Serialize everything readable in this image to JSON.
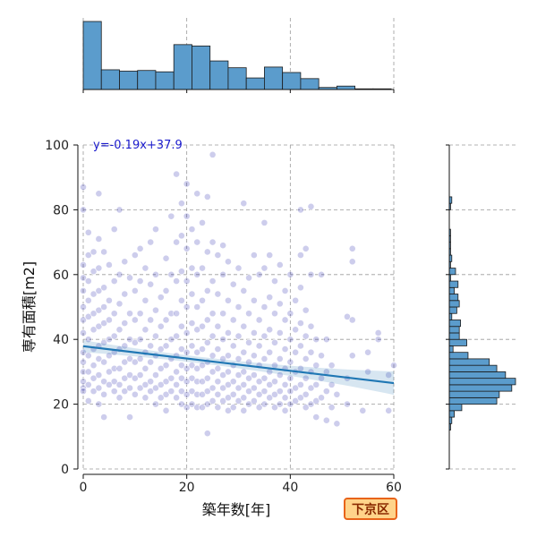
{
  "chart_data": {
    "type": "scatter",
    "xlabel": "築年数[年]",
    "ylabel": "専有面積[m2]",
    "xlim": [
      0,
      60
    ],
    "ylim": [
      0,
      100
    ],
    "xticks": [
      0,
      20,
      40,
      60
    ],
    "yticks": [
      0,
      20,
      40,
      60,
      80,
      100
    ],
    "grid": true,
    "point_color": "#1a1aa8",
    "line_color": "#1f77b4",
    "hist_color": "#5b9ccc",
    "regression": {
      "slope": -0.19,
      "intercept": 37.9,
      "label": "y=-0.19x+37.9"
    },
    "marginal_x_hist": {
      "bin_width": 3.5,
      "bin_start": 0,
      "counts": [
        100,
        29,
        27,
        28,
        26,
        66,
        64,
        42,
        32,
        17,
        33,
        25,
        16,
        3,
        5,
        1,
        1
      ]
    },
    "marginal_y_hist": {
      "bin_edges": [
        12,
        14,
        16,
        18,
        20,
        22,
        24,
        26,
        28,
        30,
        32,
        34,
        36,
        38,
        40,
        42,
        44,
        46,
        48,
        50,
        52,
        54,
        56,
        58,
        60,
        62,
        64,
        66,
        68,
        70,
        72,
        74,
        76,
        78,
        80,
        82,
        84
      ],
      "counts": [
        1,
        2,
        4,
        10,
        38,
        40,
        50,
        53,
        45,
        38,
        32,
        15,
        3,
        14,
        8,
        8,
        9,
        2,
        6,
        8,
        7,
        4,
        7,
        1,
        5,
        1,
        2,
        1,
        1,
        1,
        1,
        0,
        0,
        0,
        1,
        2
      ]
    },
    "points": [
      [
        0,
        87
      ],
      [
        0,
        80
      ],
      [
        0,
        63
      ],
      [
        0,
        59
      ],
      [
        0,
        55
      ],
      [
        0,
        50
      ],
      [
        0,
        46
      ],
      [
        0,
        42
      ],
      [
        0,
        36
      ],
      [
        0,
        33
      ],
      [
        0,
        30
      ],
      [
        0,
        27
      ],
      [
        0,
        25
      ],
      [
        0,
        24
      ],
      [
        1,
        73
      ],
      [
        1,
        66
      ],
      [
        1,
        58
      ],
      [
        1,
        52
      ],
      [
        1,
        47
      ],
      [
        1,
        40
      ],
      [
        1,
        35
      ],
      [
        1,
        30
      ],
      [
        1,
        26
      ],
      [
        1,
        21
      ],
      [
        2,
        67
      ],
      [
        2,
        61
      ],
      [
        2,
        54
      ],
      [
        2,
        48
      ],
      [
        2,
        43
      ],
      [
        2,
        37
      ],
      [
        2,
        32
      ],
      [
        2,
        28
      ],
      [
        2,
        24
      ],
      [
        3,
        85
      ],
      [
        3,
        71
      ],
      [
        3,
        62
      ],
      [
        3,
        55
      ],
      [
        3,
        49
      ],
      [
        3,
        44
      ],
      [
        3,
        38
      ],
      [
        3,
        34
      ],
      [
        3,
        29
      ],
      [
        3,
        25
      ],
      [
        3,
        20
      ],
      [
        4,
        67
      ],
      [
        4,
        56
      ],
      [
        4,
        50
      ],
      [
        4,
        45
      ],
      [
        4,
        39
      ],
      [
        4,
        33
      ],
      [
        4,
        27
      ],
      [
        4,
        23
      ],
      [
        4,
        16
      ],
      [
        5,
        63
      ],
      [
        5,
        52
      ],
      [
        5,
        46
      ],
      [
        5,
        40
      ],
      [
        5,
        35
      ],
      [
        5,
        30
      ],
      [
        5,
        26
      ],
      [
        6,
        74
      ],
      [
        6,
        58
      ],
      [
        6,
        48
      ],
      [
        6,
        41
      ],
      [
        6,
        36
      ],
      [
        6,
        31
      ],
      [
        6,
        27
      ],
      [
        6,
        24
      ],
      [
        7,
        80
      ],
      [
        7,
        60
      ],
      [
        7,
        51
      ],
      [
        7,
        43
      ],
      [
        7,
        37
      ],
      [
        7,
        31
      ],
      [
        7,
        26
      ],
      [
        7,
        22
      ],
      [
        8,
        64
      ],
      [
        8,
        54
      ],
      [
        8,
        45
      ],
      [
        8,
        38
      ],
      [
        8,
        33
      ],
      [
        8,
        28
      ],
      [
        8,
        24
      ],
      [
        9,
        59
      ],
      [
        9,
        48
      ],
      [
        9,
        40
      ],
      [
        9,
        34
      ],
      [
        9,
        29
      ],
      [
        9,
        25
      ],
      [
        9,
        16
      ],
      [
        10,
        66
      ],
      [
        10,
        55
      ],
      [
        10,
        46
      ],
      [
        10,
        39
      ],
      [
        10,
        33
      ],
      [
        10,
        28
      ],
      [
        10,
        23
      ],
      [
        11,
        68
      ],
      [
        11,
        58
      ],
      [
        11,
        48
      ],
      [
        11,
        40
      ],
      [
        11,
        34
      ],
      [
        11,
        29
      ],
      [
        11,
        25
      ],
      [
        12,
        62
      ],
      [
        12,
        52
      ],
      [
        12,
        43
      ],
      [
        12,
        36
      ],
      [
        12,
        31
      ],
      [
        12,
        26
      ],
      [
        12,
        22
      ],
      [
        13,
        70
      ],
      [
        13,
        57
      ],
      [
        13,
        46
      ],
      [
        13,
        38
      ],
      [
        13,
        33
      ],
      [
        13,
        27
      ],
      [
        13,
        24
      ],
      [
        14,
        74
      ],
      [
        14,
        60
      ],
      [
        14,
        49
      ],
      [
        14,
        41
      ],
      [
        14,
        35
      ],
      [
        14,
        29
      ],
      [
        14,
        25
      ],
      [
        14,
        20
      ],
      [
        15,
        53
      ],
      [
        15,
        44
      ],
      [
        15,
        37
      ],
      [
        15,
        31
      ],
      [
        15,
        26
      ],
      [
        15,
        22
      ],
      [
        16,
        65
      ],
      [
        16,
        55
      ],
      [
        16,
        46
      ],
      [
        16,
        38
      ],
      [
        16,
        32
      ],
      [
        16,
        27
      ],
      [
        16,
        23
      ],
      [
        16,
        18
      ],
      [
        17,
        78
      ],
      [
        17,
        60
      ],
      [
        17,
        48
      ],
      [
        17,
        40
      ],
      [
        17,
        34
      ],
      [
        17,
        28
      ],
      [
        17,
        24
      ],
      [
        18,
        91
      ],
      [
        18,
        70
      ],
      [
        18,
        58
      ],
      [
        18,
        48
      ],
      [
        18,
        41
      ],
      [
        18,
        35
      ],
      [
        18,
        30
      ],
      [
        18,
        26
      ],
      [
        18,
        22
      ],
      [
        19,
        82
      ],
      [
        19,
        72
      ],
      [
        19,
        61
      ],
      [
        19,
        52
      ],
      [
        19,
        44
      ],
      [
        19,
        37
      ],
      [
        19,
        32
      ],
      [
        19,
        28
      ],
      [
        19,
        24
      ],
      [
        19,
        20
      ],
      [
        20,
        88
      ],
      [
        20,
        78
      ],
      [
        20,
        68
      ],
      [
        20,
        58
      ],
      [
        20,
        50
      ],
      [
        20,
        42
      ],
      [
        20,
        36
      ],
      [
        20,
        31
      ],
      [
        20,
        27
      ],
      [
        20,
        23
      ],
      [
        20,
        19
      ],
      [
        21,
        74
      ],
      [
        21,
        62
      ],
      [
        21,
        54
      ],
      [
        21,
        45
      ],
      [
        21,
        38
      ],
      [
        21,
        32
      ],
      [
        21,
        28
      ],
      [
        21,
        24
      ],
      [
        21,
        20
      ],
      [
        22,
        85
      ],
      [
        22,
        70
      ],
      [
        22,
        60
      ],
      [
        22,
        50
      ],
      [
        22,
        43
      ],
      [
        22,
        36
      ],
      [
        22,
        31
      ],
      [
        22,
        27
      ],
      [
        22,
        23
      ],
      [
        22,
        19
      ],
      [
        23,
        76
      ],
      [
        23,
        62
      ],
      [
        23,
        52
      ],
      [
        23,
        44
      ],
      [
        23,
        37
      ],
      [
        23,
        32
      ],
      [
        23,
        27
      ],
      [
        23,
        23
      ],
      [
        23,
        19
      ],
      [
        24,
        84
      ],
      [
        24,
        67
      ],
      [
        24,
        55
      ],
      [
        24,
        46
      ],
      [
        24,
        39
      ],
      [
        24,
        33
      ],
      [
        24,
        28
      ],
      [
        24,
        24
      ],
      [
        24,
        20
      ],
      [
        24,
        11
      ],
      [
        25,
        97
      ],
      [
        25,
        70
      ],
      [
        25,
        58
      ],
      [
        25,
        48
      ],
      [
        25,
        41
      ],
      [
        25,
        35
      ],
      [
        25,
        30
      ],
      [
        25,
        25
      ],
      [
        25,
        21
      ],
      [
        26,
        66
      ],
      [
        26,
        54
      ],
      [
        26,
        44
      ],
      [
        26,
        37
      ],
      [
        26,
        31
      ],
      [
        26,
        27
      ],
      [
        26,
        23
      ],
      [
        26,
        19
      ],
      [
        27,
        69
      ],
      [
        27,
        60
      ],
      [
        27,
        48
      ],
      [
        27,
        40
      ],
      [
        27,
        34
      ],
      [
        27,
        29
      ],
      [
        27,
        25
      ],
      [
        27,
        21
      ],
      [
        28,
        64
      ],
      [
        28,
        52
      ],
      [
        28,
        42
      ],
      [
        28,
        35
      ],
      [
        28,
        30
      ],
      [
        28,
        26
      ],
      [
        28,
        22
      ],
      [
        28,
        18
      ],
      [
        29,
        57
      ],
      [
        29,
        46
      ],
      [
        29,
        38
      ],
      [
        29,
        32
      ],
      [
        29,
        27
      ],
      [
        29,
        23
      ],
      [
        29,
        19
      ],
      [
        30,
        62
      ],
      [
        30,
        50
      ],
      [
        30,
        41
      ],
      [
        30,
        34
      ],
      [
        30,
        29
      ],
      [
        30,
        25
      ],
      [
        30,
        21
      ],
      [
        31,
        82
      ],
      [
        31,
        55
      ],
      [
        31,
        44
      ],
      [
        31,
        36
      ],
      [
        31,
        30
      ],
      [
        31,
        26
      ],
      [
        31,
        22
      ],
      [
        31,
        18
      ],
      [
        32,
        59
      ],
      [
        32,
        48
      ],
      [
        32,
        39
      ],
      [
        32,
        33
      ],
      [
        32,
        28
      ],
      [
        32,
        24
      ],
      [
        32,
        20
      ],
      [
        33,
        66
      ],
      [
        33,
        52
      ],
      [
        33,
        42
      ],
      [
        33,
        35
      ],
      [
        33,
        29
      ],
      [
        33,
        25
      ],
      [
        33,
        21
      ],
      [
        34,
        60
      ],
      [
        34,
        46
      ],
      [
        34,
        38
      ],
      [
        34,
        32
      ],
      [
        34,
        27
      ],
      [
        34,
        23
      ],
      [
        34,
        19
      ],
      [
        35,
        76
      ],
      [
        35,
        62
      ],
      [
        35,
        50
      ],
      [
        35,
        41
      ],
      [
        35,
        34
      ],
      [
        35,
        28
      ],
      [
        35,
        24
      ],
      [
        35,
        20
      ],
      [
        36,
        66
      ],
      [
        36,
        53
      ],
      [
        36,
        43
      ],
      [
        36,
        36
      ],
      [
        36,
        30
      ],
      [
        36,
        26
      ],
      [
        36,
        22
      ],
      [
        37,
        58
      ],
      [
        37,
        48
      ],
      [
        37,
        39
      ],
      [
        37,
        32
      ],
      [
        37,
        27
      ],
      [
        37,
        23
      ],
      [
        37,
        19
      ],
      [
        38,
        63
      ],
      [
        38,
        51
      ],
      [
        38,
        42
      ],
      [
        38,
        34
      ],
      [
        38,
        29
      ],
      [
        38,
        24
      ],
      [
        38,
        20
      ],
      [
        39,
        55
      ],
      [
        39,
        46
      ],
      [
        39,
        37
      ],
      [
        39,
        31
      ],
      [
        39,
        26
      ],
      [
        39,
        22
      ],
      [
        39,
        18
      ],
      [
        40,
        60
      ],
      [
        40,
        48
      ],
      [
        40,
        40
      ],
      [
        40,
        33
      ],
      [
        40,
        28
      ],
      [
        40,
        24
      ],
      [
        40,
        20
      ],
      [
        41,
        52
      ],
      [
        41,
        43
      ],
      [
        41,
        36
      ],
      [
        41,
        30
      ],
      [
        41,
        25
      ],
      [
        41,
        21
      ],
      [
        42,
        80
      ],
      [
        42,
        66
      ],
      [
        42,
        56
      ],
      [
        42,
        45
      ],
      [
        42,
        38
      ],
      [
        42,
        31
      ],
      [
        42,
        26
      ],
      [
        42,
        22
      ],
      [
        43,
        68
      ],
      [
        43,
        49
      ],
      [
        43,
        41
      ],
      [
        43,
        34
      ],
      [
        43,
        28
      ],
      [
        43,
        23
      ],
      [
        43,
        19
      ],
      [
        44,
        81
      ],
      [
        44,
        60
      ],
      [
        44,
        44
      ],
      [
        44,
        36
      ],
      [
        44,
        30
      ],
      [
        44,
        25
      ],
      [
        44,
        20
      ],
      [
        45,
        40
      ],
      [
        45,
        32
      ],
      [
        45,
        26
      ],
      [
        45,
        21
      ],
      [
        45,
        16
      ],
      [
        46,
        60
      ],
      [
        46,
        35
      ],
      [
        46,
        28
      ],
      [
        46,
        22
      ],
      [
        47,
        40
      ],
      [
        47,
        30
      ],
      [
        47,
        24
      ],
      [
        47,
        15
      ],
      [
        48,
        32
      ],
      [
        48,
        26
      ],
      [
        48,
        19
      ],
      [
        49,
        23
      ],
      [
        49,
        14
      ],
      [
        51,
        47
      ],
      [
        51,
        28
      ],
      [
        51,
        20
      ],
      [
        52,
        68
      ],
      [
        52,
        64
      ],
      [
        52,
        46
      ],
      [
        52,
        35
      ],
      [
        54,
        18
      ],
      [
        55,
        36
      ],
      [
        55,
        30
      ],
      [
        57,
        42
      ],
      [
        57,
        40
      ],
      [
        59,
        18
      ],
      [
        59,
        29
      ],
      [
        60,
        32
      ]
    ]
  },
  "badge": {
    "label": "下京区"
  }
}
